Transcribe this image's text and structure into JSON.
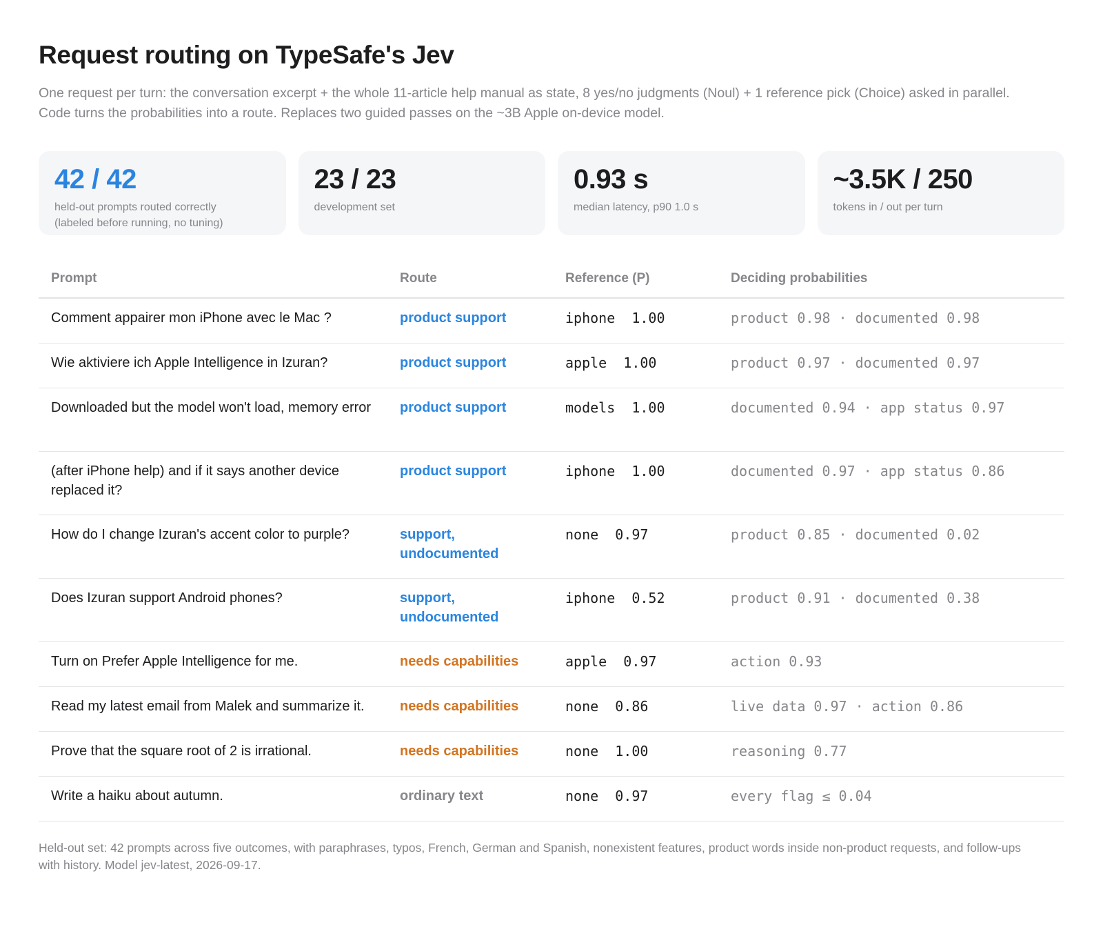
{
  "header": {
    "title": "Request routing on TypeSafe's Jev",
    "subtitle": "One request per turn: the conversation excerpt + the whole 11-article help manual as state, 8 yes/no judgments (Noul) + 1 reference pick (Choice) asked in parallel. Code turns the probabilities into a route. Replaces two guided passes on the ~3B Apple on-device model."
  },
  "stats": [
    {
      "value": "42 / 42",
      "label_line1": "held-out prompts routed correctly",
      "label_line2": "(labeled before running, no tuning)",
      "color": "#2a85df"
    },
    {
      "value": "23 / 23",
      "label_line1": "development set",
      "label_line2": ""
    },
    {
      "value": "0.93 s",
      "label_line1": "median latency, p90 1.0 s",
      "label_line2": ""
    },
    {
      "value": "~3.5K / 250",
      "label_line1": "tokens in / out per turn",
      "label_line2": ""
    }
  ],
  "table": {
    "headers": {
      "prompt": "Prompt",
      "route": "Route",
      "reference": "Reference (P)",
      "probabilities": "Deciding probabilities"
    },
    "rows": [
      {
        "prompt": "Comment appairer mon iPhone avec le Mac ?",
        "route": "product support",
        "route_color": "blue",
        "reference": "iphone  1.00",
        "probabilities": "product 0.98 · documented 0.98"
      },
      {
        "prompt": "Wie aktiviere ich Apple Intelligence in Izuran?",
        "route": "product support",
        "route_color": "blue",
        "reference": "apple  1.00",
        "probabilities": "product 0.97 · documented 0.97"
      },
      {
        "prompt": "Downloaded but the model won't load, memory error",
        "route": "product support",
        "route_color": "blue",
        "reference": "models  1.00",
        "probabilities": "documented 0.94 · app status 0.97"
      },
      {
        "prompt": "(after iPhone help) and if it says another device replaced it?",
        "route": "product support",
        "route_color": "blue",
        "reference": "iphone  1.00",
        "probabilities": "documented 0.97 · app status 0.86"
      },
      {
        "prompt": "How do I change Izuran's accent color to purple?",
        "route": "support, undocumented",
        "route_color": "blue",
        "reference": "none  0.97",
        "probabilities": "product 0.85 · documented 0.02"
      },
      {
        "prompt": "Does Izuran support Android phones?",
        "route": "support, undocumented",
        "route_color": "blue",
        "reference": "iphone  0.52",
        "probabilities": "product 0.91 · documented 0.38"
      },
      {
        "prompt": "Turn on Prefer Apple Intelligence for me.",
        "route": "needs capabilities",
        "route_color": "orange",
        "reference": "apple  0.97",
        "probabilities": "action 0.93"
      },
      {
        "prompt": "Read my latest email from Malek and summarize it.",
        "route": "needs capabilities",
        "route_color": "orange",
        "reference": "none  0.86",
        "probabilities": "live data 0.97 · action 0.86"
      },
      {
        "prompt": "Prove that the square root of 2 is irrational.",
        "route": "needs capabilities",
        "route_color": "orange",
        "reference": "none  1.00",
        "probabilities": "reasoning 0.77"
      },
      {
        "prompt": "Write a haiku about autumn.",
        "route": "ordinary text",
        "route_color": "gray",
        "reference": "none  0.97",
        "probabilities": "every flag ≤ 0.04"
      }
    ]
  },
  "footer": "Held-out set: 42 prompts across five outcomes, with paraphrases, typos, French, German and Spanish, nonexistent features, product words inside non-product requests, and follow-ups with history. Model jev-latest, 2026-09-17.",
  "colors": {
    "accent_blue": "#2a85df",
    "accent_orange": "#d37420",
    "muted_gray": "#86868b"
  }
}
